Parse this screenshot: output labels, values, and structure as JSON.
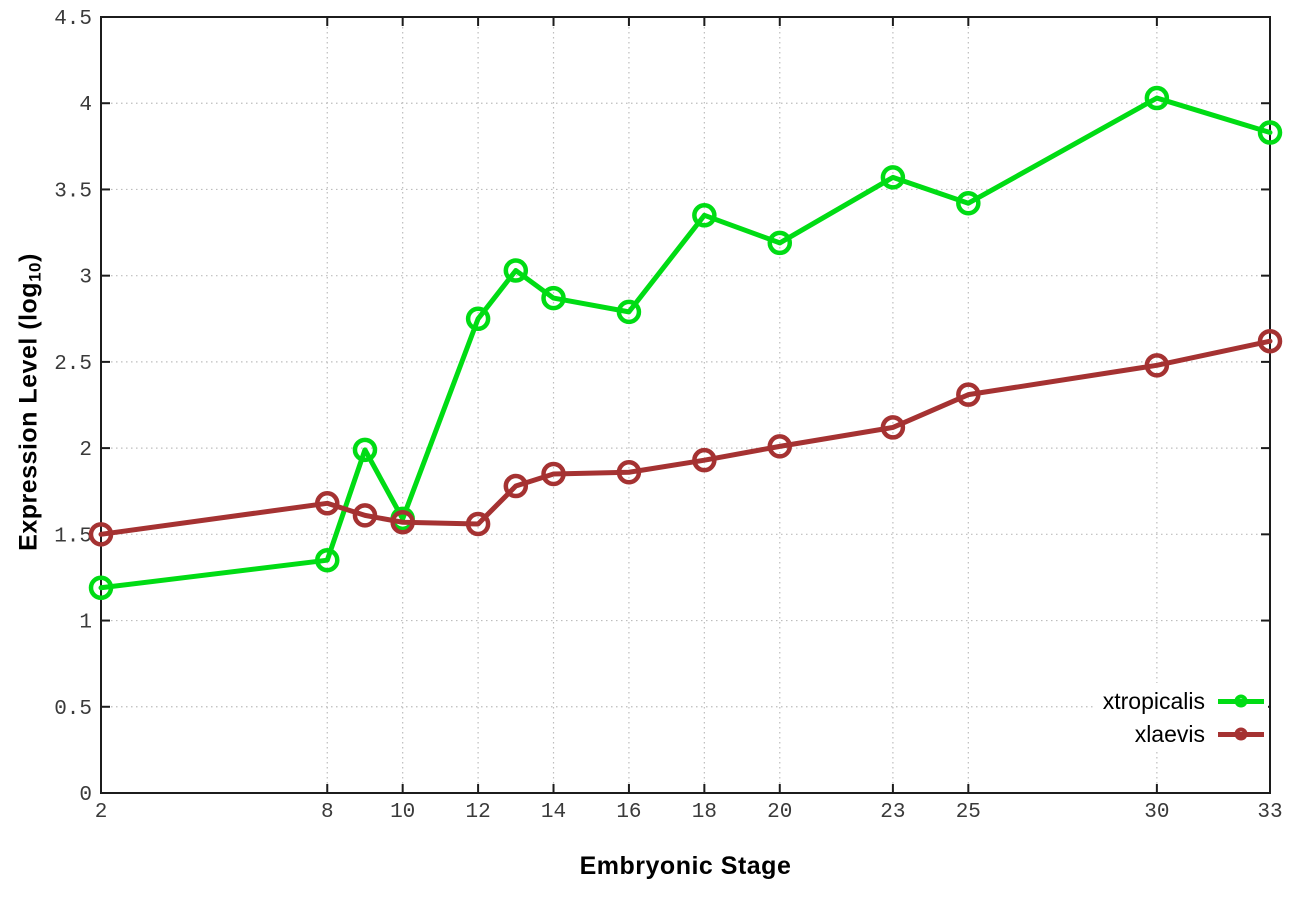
{
  "chart_data": {
    "type": "line",
    "title": "",
    "xlabel": "Embryonic Stage",
    "ylabel": "Expression Level (log10)",
    "ylabel_parts": {
      "main": "Expression Level (log",
      "sub": "10",
      "close": ")"
    },
    "xlim": [
      2,
      33
    ],
    "ylim": [
      0,
      4.5
    ],
    "x_ticks": [
      2,
      8,
      10,
      12,
      14,
      16,
      18,
      20,
      23,
      25,
      30,
      33
    ],
    "y_ticks": [
      0,
      0.5,
      1,
      1.5,
      2,
      2.5,
      3,
      3.5,
      4,
      4.5
    ],
    "grid": true,
    "legend_position": "bottom-right",
    "x": [
      2,
      8,
      9,
      10,
      12,
      13,
      14,
      16,
      18,
      20,
      23,
      25,
      30,
      33
    ],
    "series": [
      {
        "name": "xtropicalis",
        "color": "#00dc14",
        "values": [
          1.19,
          1.35,
          1.99,
          1.59,
          2.75,
          3.03,
          2.87,
          2.79,
          3.35,
          3.19,
          3.57,
          3.42,
          4.03,
          3.83
        ]
      },
      {
        "name": "xlaevis",
        "color": "#a53232",
        "values": [
          1.5,
          1.68,
          1.61,
          1.57,
          1.56,
          1.78,
          1.85,
          1.86,
          1.93,
          2.01,
          2.12,
          2.31,
          2.48,
          2.62
        ]
      }
    ],
    "style": {
      "border_color": "#1c1c1c",
      "grid_color": "#bdbdbd",
      "tick_label_color": "#3a3a3a",
      "line_width": 5,
      "marker_radius": 10,
      "marker_stroke": 4.5
    }
  }
}
